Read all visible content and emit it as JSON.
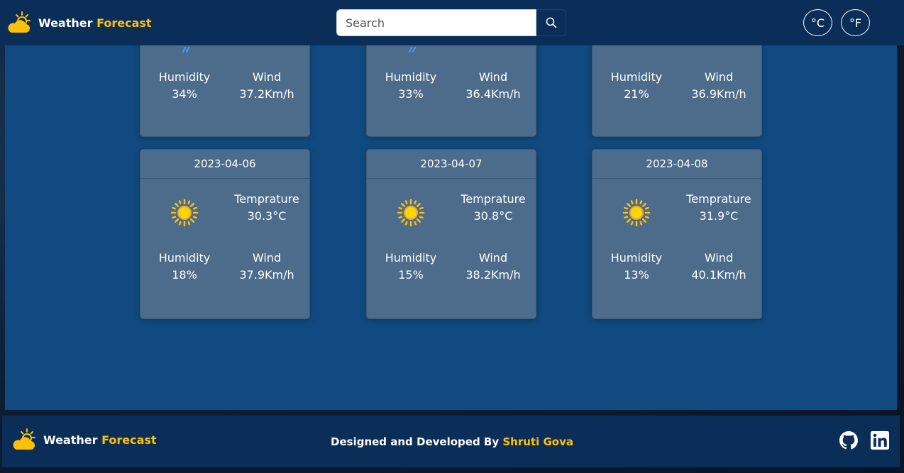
{
  "brand": {
    "word1": "Weather",
    "word2": "Forecast"
  },
  "search": {
    "placeholder": "Search",
    "value": ""
  },
  "units": {
    "celsius": "°C",
    "fahrenheit": "°F"
  },
  "top_cards": [
    {
      "humidity_label": "Humidity",
      "humidity": "34%",
      "wind_label": "Wind",
      "wind": "37.2Km/h"
    },
    {
      "humidity_label": "Humidity",
      "humidity": "33%",
      "wind_label": "Wind",
      "wind": "36.4Km/h"
    },
    {
      "humidity_label": "Humidity",
      "humidity": "21%",
      "wind_label": "Wind",
      "wind": "36.9Km/h"
    }
  ],
  "cards": [
    {
      "date": "2023-04-06",
      "temp_label": "Temprature",
      "temp": "30.3°C",
      "humidity_label": "Humidity",
      "humidity": "18%",
      "wind_label": "Wind",
      "wind": "37.9Km/h",
      "icon": "sun-icon"
    },
    {
      "date": "2023-04-07",
      "temp_label": "Temprature",
      "temp": "30.8°C",
      "humidity_label": "Humidity",
      "humidity": "15%",
      "wind_label": "Wind",
      "wind": "38.2Km/h",
      "icon": "sun-icon"
    },
    {
      "date": "2023-04-08",
      "temp_label": "Temprature",
      "temp": "31.9°C",
      "humidity_label": "Humidity",
      "humidity": "13%",
      "wind_label": "Wind",
      "wind": "40.1Km/h",
      "icon": "sun-icon"
    }
  ],
  "footer": {
    "brand_word1": "Weather",
    "brand_word2": "Forecast",
    "credit_prefix": "Designed and Developed By",
    "author": "Shruti Gova",
    "github_icon": "github-icon",
    "linkedin_icon": "linkedin-icon"
  },
  "colors": {
    "accent": "#ffc107",
    "navbar": "#0b2e58",
    "panel": "#114a80",
    "card": "#4d6c8b"
  }
}
